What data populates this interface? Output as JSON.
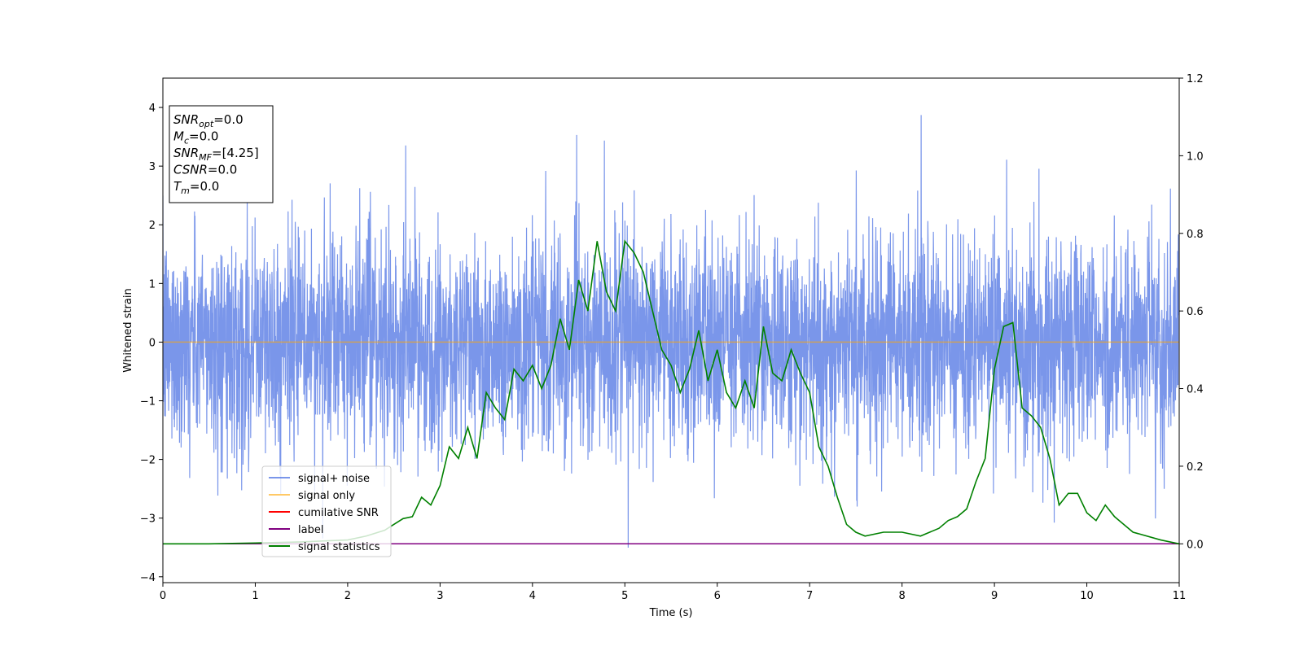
{
  "chart_data": {
    "type": "line",
    "xlabel": "Time (s)",
    "ylabel": "Whitened strain",
    "xlim": [
      0,
      11
    ],
    "ylim_left": [
      -4.1,
      4.5
    ],
    "ylim_right": [
      -0.1,
      1.2
    ],
    "xticks": [
      "0",
      "1",
      "2",
      "3",
      "4",
      "5",
      "6",
      "7",
      "8",
      "9",
      "10",
      "11"
    ],
    "yticks_left": [
      "−4",
      "−3",
      "−2",
      "−1",
      "0",
      "1",
      "2",
      "3",
      "4"
    ],
    "yticks_right": [
      "0.0",
      "0.2",
      "0.4",
      "0.6",
      "0.8",
      "1.0",
      "1.2"
    ],
    "grid": false,
    "legend_placement": "lower-left",
    "info_box": [
      {
        "base": "SNR",
        "sub": "opt",
        "value": "=0.0"
      },
      {
        "base": "M",
        "sub": "c",
        "value": "=0.0"
      },
      {
        "base": "SNR",
        "sub": "MF",
        "value": "=[4.25]"
      },
      {
        "base": "CSNR",
        "sub": "",
        "value": "=0.0"
      },
      {
        "base": "T",
        "sub": "m",
        "value": "=0.0"
      }
    ],
    "series": [
      {
        "name": "signal+ noise",
        "color": "#4169e1",
        "axis": "left",
        "note_style": "noisy",
        "amplitude_sd": 0.9
      },
      {
        "name": "signal only",
        "color": "#ffa500",
        "axis": "left",
        "x": [
          0,
          11
        ],
        "y": [
          0,
          0
        ]
      },
      {
        "name": "cumilative SNR",
        "color": "#ff0000",
        "axis": "right",
        "x": [
          0,
          11
        ],
        "y": [
          0,
          0
        ]
      },
      {
        "name": "label",
        "color": "#800080",
        "axis": "right",
        "x": [
          0,
          11
        ],
        "y": [
          0,
          0
        ]
      },
      {
        "name": "signal statistics",
        "color": "#008000",
        "axis": "right",
        "x": [
          0,
          0.5,
          1.0,
          1.5,
          2.0,
          2.2,
          2.4,
          2.5,
          2.6,
          2.7,
          2.8,
          2.9,
          3.0,
          3.1,
          3.2,
          3.3,
          3.4,
          3.5,
          3.6,
          3.7,
          3.8,
          3.9,
          4.0,
          4.1,
          4.2,
          4.3,
          4.4,
          4.5,
          4.6,
          4.7,
          4.8,
          4.9,
          5.0,
          5.1,
          5.2,
          5.3,
          5.4,
          5.5,
          5.6,
          5.7,
          5.8,
          5.9,
          6.0,
          6.1,
          6.2,
          6.3,
          6.4,
          6.5,
          6.6,
          6.7,
          6.8,
          6.9,
          7.0,
          7.1,
          7.2,
          7.3,
          7.4,
          7.5,
          7.6,
          7.8,
          8.0,
          8.2,
          8.4,
          8.5,
          8.6,
          8.7,
          8.8,
          8.9,
          9.0,
          9.1,
          9.2,
          9.3,
          9.4,
          9.5,
          9.6,
          9.7,
          9.8,
          9.9,
          10.0,
          10.1,
          10.2,
          10.3,
          10.5,
          10.8,
          11.0
        ],
        "y": [
          0.0,
          0.0,
          0.002,
          0.005,
          0.01,
          0.02,
          0.035,
          0.05,
          0.065,
          0.07,
          0.12,
          0.1,
          0.15,
          0.25,
          0.22,
          0.3,
          0.22,
          0.39,
          0.35,
          0.32,
          0.45,
          0.42,
          0.46,
          0.4,
          0.46,
          0.58,
          0.5,
          0.68,
          0.6,
          0.78,
          0.65,
          0.6,
          0.78,
          0.75,
          0.7,
          0.6,
          0.5,
          0.46,
          0.39,
          0.45,
          0.55,
          0.42,
          0.5,
          0.39,
          0.35,
          0.42,
          0.35,
          0.56,
          0.44,
          0.42,
          0.5,
          0.44,
          0.39,
          0.25,
          0.2,
          0.12,
          0.05,
          0.03,
          0.02,
          0.03,
          0.03,
          0.02,
          0.04,
          0.06,
          0.07,
          0.09,
          0.16,
          0.22,
          0.45,
          0.56,
          0.57,
          0.35,
          0.33,
          0.3,
          0.22,
          0.1,
          0.13,
          0.13,
          0.08,
          0.06,
          0.1,
          0.07,
          0.03,
          0.01,
          0.0
        ]
      }
    ]
  }
}
